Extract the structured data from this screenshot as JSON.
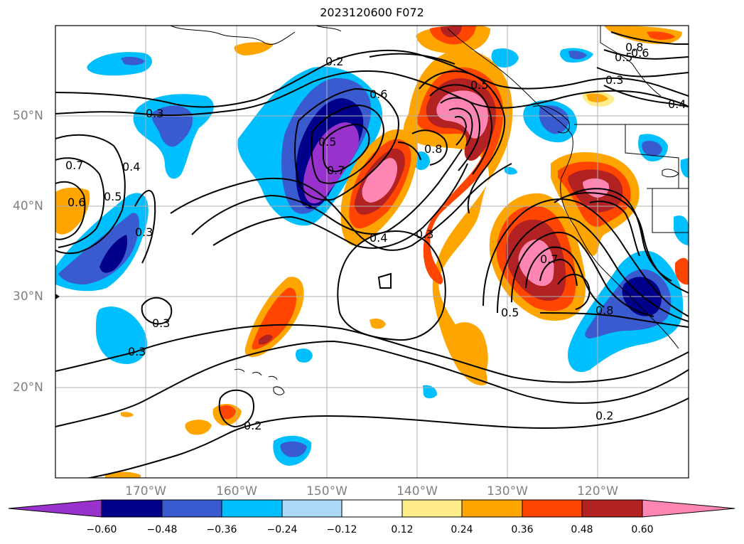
{
  "title": "2023120600 F072",
  "map": {
    "lon_labels": [
      "170°W",
      "160°W",
      "150°W",
      "140°W",
      "130°W",
      "120°W"
    ],
    "lat_labels": [
      "50°N",
      "40°N",
      "30°N",
      "20°N"
    ],
    "contour_labels": [
      "0.2",
      "0.3",
      "0.4",
      "0.5",
      "0.6",
      "0.7",
      "0.8"
    ]
  },
  "colorbar": {
    "colors": [
      "#9932cc",
      "#00008b",
      "#3a5bcf",
      "#00bfff",
      "#add8f7",
      "#ffffff",
      "#ffec8b",
      "#ffa500",
      "#ff4500",
      "#b22222",
      "#ff85b3"
    ],
    "tick_labels": [
      "−0.60",
      "−0.48",
      "−0.36",
      "−0.24",
      "−0.12",
      "0.12",
      "0.24",
      "0.36",
      "0.48",
      "0.60"
    ]
  }
}
